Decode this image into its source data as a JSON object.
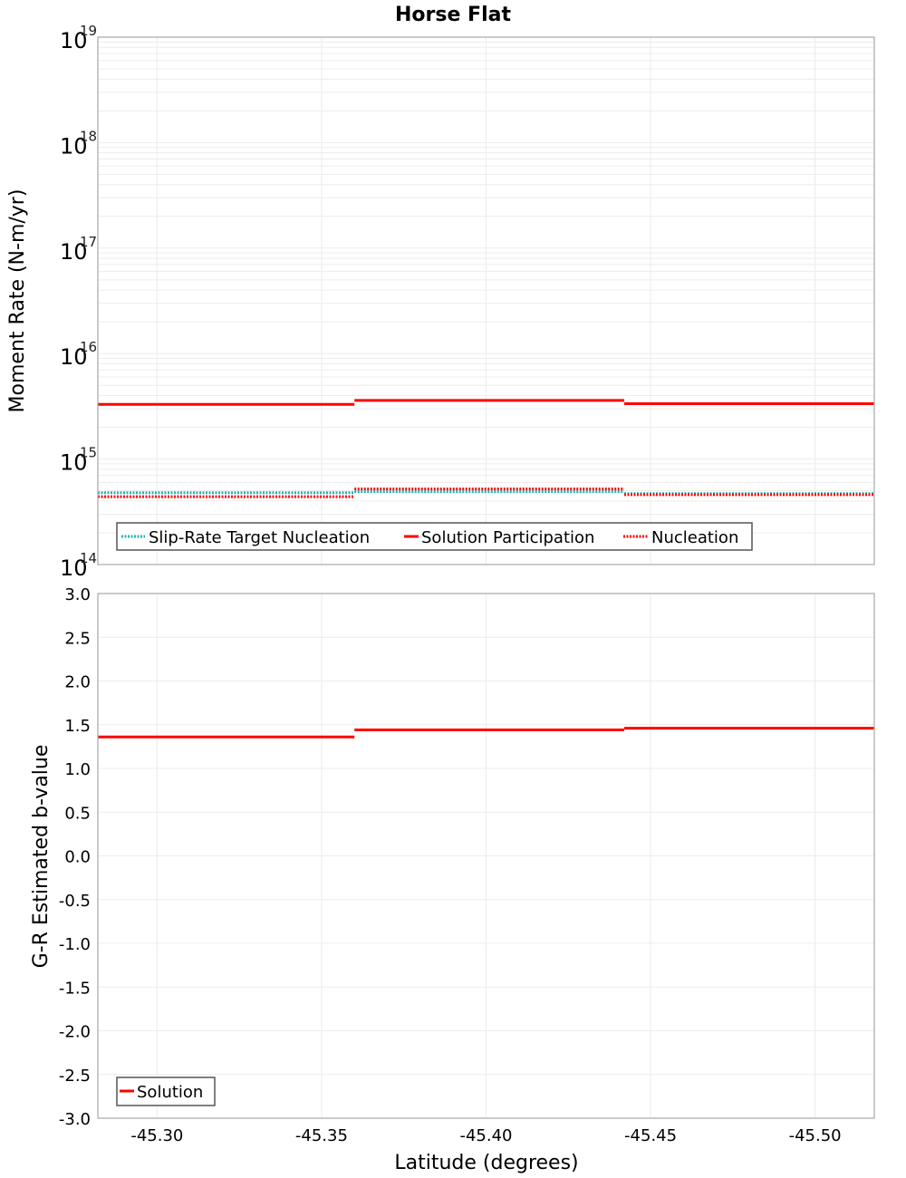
{
  "title": "Horse Flat",
  "chart_data": [
    {
      "type": "line",
      "step": true,
      "title": "Horse Flat",
      "xlabel": "Latitude (degrees)",
      "ylabel": "Moment Rate (N-m/yr)",
      "yscale": "log",
      "ylim": [
        100000000000000.0,
        1e+19
      ],
      "xlim": [
        -45.282,
        -45.518
      ],
      "x_inverted": true,
      "grid": true,
      "ytick_labels": [
        {
          "base": "10",
          "exp": "19",
          "value": 1e+19
        },
        {
          "base": "10",
          "exp": "18",
          "value": 1e+18
        },
        {
          "base": "10",
          "exp": "17",
          "value": 1e+17
        },
        {
          "base": "10",
          "exp": "16",
          "value": 1e+16
        },
        {
          "base": "10",
          "exp": "15",
          "value": 1000000000000000.0
        },
        {
          "base": "10",
          "exp": "14",
          "value": 100000000000000.0
        }
      ],
      "xtick_labels": [
        "-45.30",
        "-45.35",
        "-45.40",
        "-45.45",
        "-45.50"
      ],
      "x_bins": [
        -45.282,
        -45.36,
        -45.442,
        -45.518
      ],
      "series": [
        {
          "name": "Slip-Rate Target Nucleation",
          "color": "#1fb5b5",
          "style": "dotted",
          "values": [
            480000000000000.0,
            490000000000000.0,
            470000000000000.0
          ]
        },
        {
          "name": "Solution Participation",
          "color": "#ff0000",
          "style": "solid",
          "values": [
            3300000000000000.0,
            3600000000000000.0,
            3350000000000000.0
          ]
        },
        {
          "name": "Nucleation",
          "color": "#ff0000",
          "style": "dotted",
          "values": [
            440000000000000.0,
            520000000000000.0,
            460000000000000.0
          ]
        }
      ],
      "legend_position": "lower-left"
    },
    {
      "type": "line",
      "step": true,
      "xlabel": "Latitude (degrees)",
      "ylabel": "G-R Estimated b-value",
      "ylim": [
        -3.0,
        3.0
      ],
      "xlim": [
        -45.282,
        -45.518
      ],
      "x_inverted": true,
      "grid": true,
      "ytick_labels": [
        "3.0",
        "2.5",
        "2.0",
        "1.5",
        "1.0",
        "0.5",
        "0.0",
        "-0.5",
        "-1.0",
        "-1.5",
        "-2.0",
        "-2.5",
        "-3.0"
      ],
      "xtick_labels": [
        "-45.30",
        "-45.35",
        "-45.40",
        "-45.45",
        "-45.50"
      ],
      "x_bins": [
        -45.282,
        -45.36,
        -45.442,
        -45.518
      ],
      "series": [
        {
          "name": "Solution",
          "color": "#ff0000",
          "style": "solid",
          "values": [
            1.36,
            1.44,
            1.46
          ]
        }
      ],
      "legend_position": "lower-left"
    }
  ],
  "top": {
    "ylabel": "Moment Rate (N-m/yr)",
    "legend": [
      "Slip-Rate Target Nucleation",
      "Solution Participation",
      "Nucleation"
    ]
  },
  "bottom": {
    "ylabel": "G-R Estimated b-value",
    "xlabel": "Latitude (degrees)",
    "legend": [
      "Solution"
    ]
  }
}
